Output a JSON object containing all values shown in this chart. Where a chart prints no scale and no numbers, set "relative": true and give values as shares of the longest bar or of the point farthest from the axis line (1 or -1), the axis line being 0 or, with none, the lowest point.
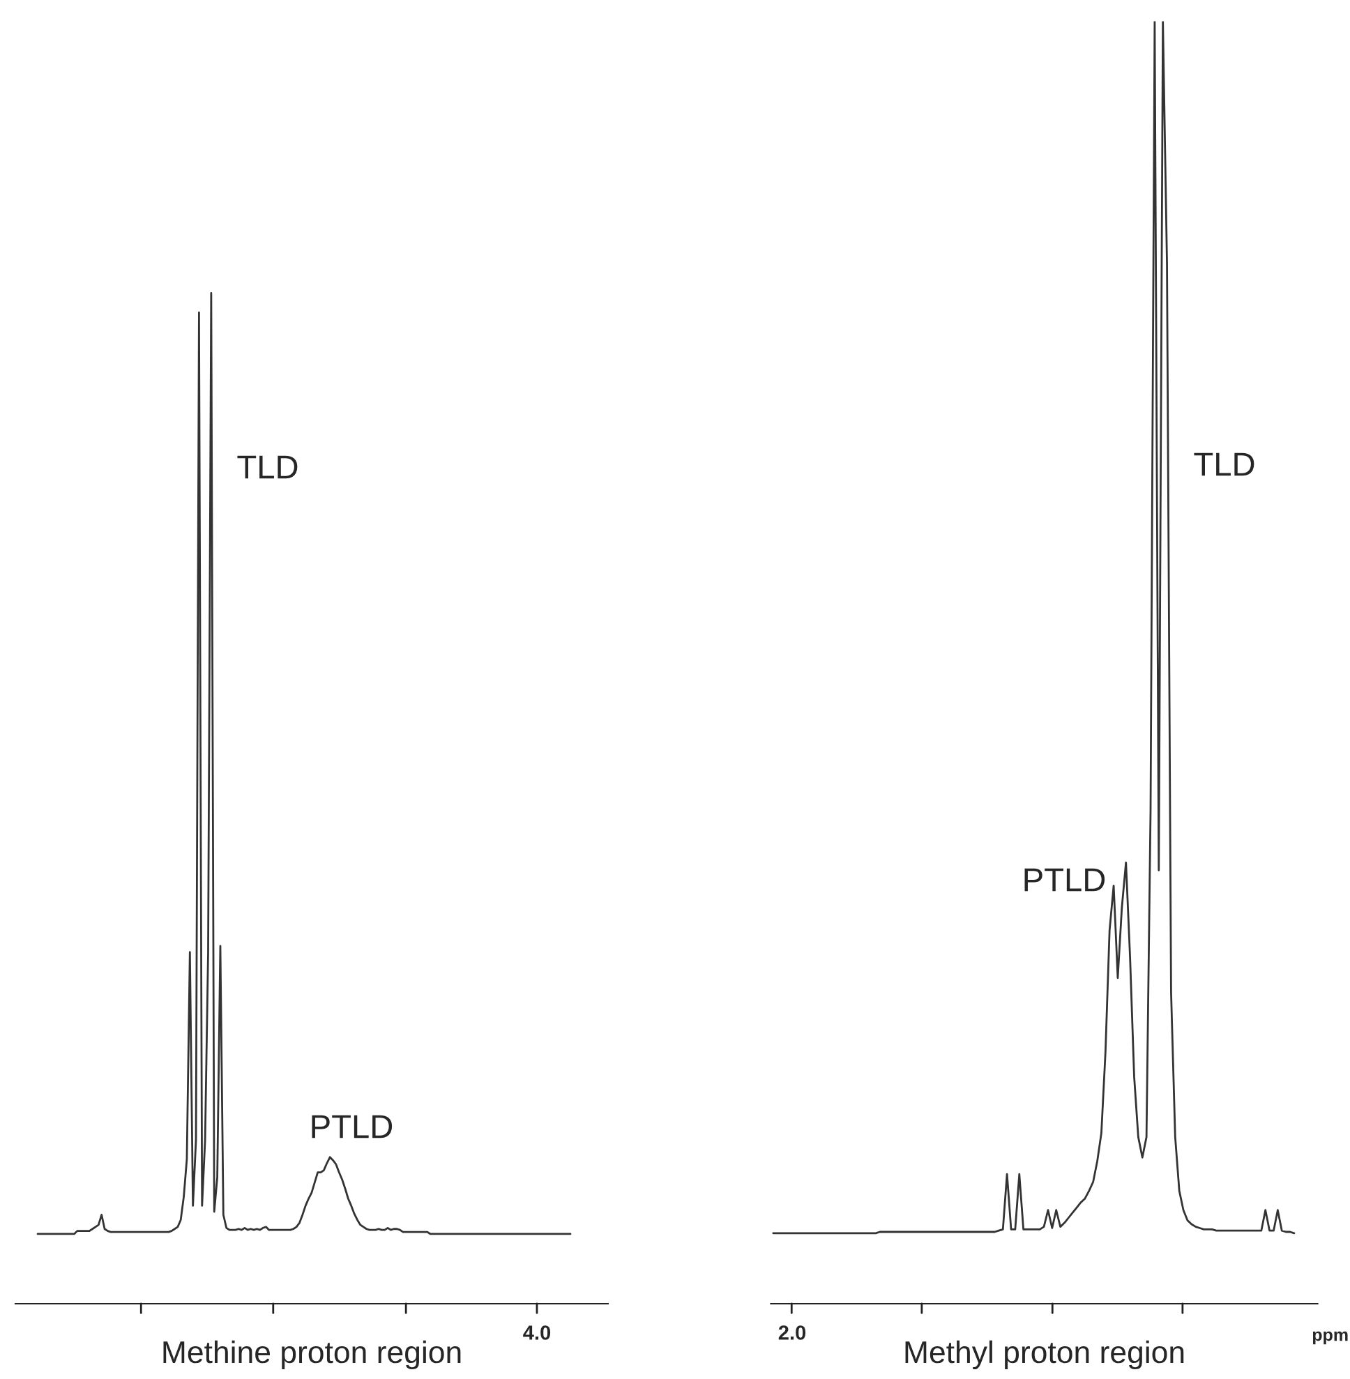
{
  "chart_data": [
    {
      "type": "line",
      "title": "Methine proton region",
      "relative": true,
      "color": "#333333",
      "categories": [
        null,
        null,
        null,
        null,
        null,
        null,
        null,
        null,
        null,
        null,
        null,
        null,
        null,
        null,
        null,
        null,
        null,
        null,
        null,
        null,
        null,
        null,
        null,
        null,
        null,
        null,
        null,
        null,
        null,
        null,
        null,
        null,
        null,
        null,
        null,
        null,
        null,
        null,
        null,
        null,
        null,
        null,
        null,
        null,
        null,
        null,
        null,
        null,
        null,
        null,
        null,
        null,
        null,
        null,
        null,
        null,
        null,
        null,
        null,
        null,
        null,
        null,
        null,
        null,
        null,
        null,
        null,
        null,
        null,
        null,
        null,
        null,
        null,
        null,
        null,
        null,
        null,
        null,
        null,
        null,
        null,
        null,
        null,
        null,
        null,
        null,
        null,
        null,
        null,
        null,
        null,
        null,
        null,
        null,
        null,
        null,
        null,
        null,
        null,
        null,
        null,
        null,
        null,
        null,
        null,
        null,
        null,
        null,
        null,
        null,
        null,
        null,
        null,
        null,
        null,
        null,
        null,
        null,
        null,
        null,
        null,
        null,
        null,
        null,
        null,
        null,
        null,
        null,
        null,
        null,
        null,
        null,
        null,
        null,
        null,
        null,
        null,
        null,
        null,
        null,
        null,
        null,
        null,
        null,
        null,
        null,
        null,
        null,
        null,
        null,
        null,
        null,
        null,
        null,
        null,
        null,
        null,
        null,
        null,
        null,
        null,
        null,
        null,
        null,
        null,
        null,
        null,
        null,
        null,
        null,
        null,
        null,
        null,
        null,
        null,
        null
      ],
      "values": [
        0.069,
        0.069,
        0.069,
        0.069,
        0.069,
        0.069,
        0.069,
        0.069,
        0.069,
        0.069,
        0.069,
        0.069,
        0.069,
        0.072,
        0.072,
        0.072,
        0.072,
        0.072,
        0.074,
        0.076,
        0.078,
        0.088,
        0.074,
        0.072,
        0.071,
        0.071,
        0.071,
        0.071,
        0.071,
        0.071,
        0.071,
        0.071,
        0.071,
        0.071,
        0.071,
        0.071,
        0.071,
        0.071,
        0.071,
        0.071,
        0.071,
        0.071,
        0.071,
        0.071,
        0.072,
        0.074,
        0.076,
        0.083,
        0.106,
        0.143,
        0.348,
        0.097,
        0.162,
        0.981,
        0.097,
        0.162,
        0.348,
        1.0,
        0.091,
        0.125,
        0.354,
        0.088,
        0.075,
        0.073,
        0.073,
        0.073,
        0.074,
        0.073,
        0.075,
        0.073,
        0.074,
        0.073,
        0.074,
        0.073,
        0.075,
        0.076,
        0.073,
        0.073,
        0.073,
        0.073,
        0.073,
        0.073,
        0.073,
        0.073,
        0.074,
        0.076,
        0.08,
        0.088,
        0.097,
        0.104,
        0.11,
        0.12,
        0.13,
        0.13,
        0.132,
        0.139,
        0.145,
        0.142,
        0.138,
        0.13,
        0.123,
        0.114,
        0.104,
        0.097,
        0.089,
        0.083,
        0.078,
        0.076,
        0.074,
        0.073,
        0.073,
        0.073,
        0.074,
        0.073,
        0.073,
        0.075,
        0.073,
        0.074,
        0.074,
        0.073,
        0.071,
        0.071,
        0.071,
        0.071,
        0.071,
        0.071,
        0.071,
        0.071,
        0.071,
        0.069,
        0.069,
        0.069,
        0.069,
        0.069,
        0.069,
        0.069,
        0.069,
        0.069,
        0.069,
        0.069,
        0.069,
        0.069,
        0.069,
        0.069,
        0.069,
        0.069,
        0.069,
        0.069,
        0.069,
        0.069,
        0.069,
        0.069,
        0.069,
        0.069,
        0.069,
        0.069,
        0.069,
        0.069,
        0.069,
        0.069,
        0.069,
        0.069,
        0.069,
        0.069,
        0.069,
        0.069,
        0.069,
        0.069,
        0.069,
        0.069,
        0.069,
        0.069,
        0.069,
        0.069,
        0.069,
        0.069
      ],
      "annotations": [
        "TLD",
        "PTLD",
        "4.0"
      ]
    },
    {
      "type": "line",
      "title": "Methyl proton region",
      "xlabel": "ppm",
      "relative": true,
      "color": "#333333",
      "categories": [
        null,
        null,
        null,
        null,
        null,
        null,
        null,
        null,
        null,
        null,
        null,
        null,
        null,
        null,
        null,
        null,
        null,
        null,
        null,
        null,
        null,
        null,
        null,
        null,
        null,
        null,
        null,
        null,
        null,
        null,
        null,
        null,
        null,
        null,
        null,
        null,
        null,
        null,
        null,
        null,
        null,
        null,
        null,
        null,
        null,
        null,
        null,
        null,
        null,
        null,
        null,
        null,
        null,
        null,
        null,
        null,
        null,
        null,
        null,
        null,
        null,
        null,
        null,
        null,
        null,
        null,
        null,
        null,
        null,
        null,
        null,
        null,
        null,
        null,
        null,
        null,
        null,
        null,
        null,
        null,
        null,
        null,
        null,
        null,
        null,
        null,
        null,
        null,
        null,
        null,
        null,
        null,
        null,
        null,
        null,
        null,
        null,
        null,
        null,
        null,
        null,
        null,
        null,
        null,
        null,
        null,
        null,
        null,
        null,
        null,
        null,
        null,
        null,
        null,
        null,
        null,
        null,
        null,
        null,
        null,
        null,
        null,
        null,
        null,
        null,
        null,
        null,
        null
      ],
      "values": [
        0.055,
        0.055,
        0.055,
        0.055,
        0.055,
        0.055,
        0.055,
        0.055,
        0.055,
        0.055,
        0.055,
        0.055,
        0.055,
        0.055,
        0.055,
        0.055,
        0.055,
        0.055,
        0.055,
        0.055,
        0.055,
        0.055,
        0.055,
        0.055,
        0.055,
        0.055,
        0.056,
        0.056,
        0.056,
        0.056,
        0.056,
        0.056,
        0.056,
        0.056,
        0.056,
        0.056,
        0.056,
        0.056,
        0.056,
        0.056,
        0.056,
        0.056,
        0.056,
        0.056,
        0.056,
        0.056,
        0.056,
        0.056,
        0.056,
        0.056,
        0.056,
        0.056,
        0.056,
        0.056,
        0.056,
        0.057,
        0.058,
        0.101,
        0.058,
        0.058,
        0.101,
        0.058,
        0.058,
        0.058,
        0.058,
        0.058,
        0.06,
        0.073,
        0.059,
        0.073,
        0.06,
        0.063,
        0.067,
        0.071,
        0.075,
        0.079,
        0.082,
        0.088,
        0.095,
        0.111,
        0.133,
        0.196,
        0.291,
        0.326,
        0.254,
        0.309,
        0.344,
        0.27,
        0.177,
        0.13,
        0.114,
        0.13,
        0.385,
        1,
        0.338,
        1,
        0.811,
        0.243,
        0.13,
        0.088,
        0.073,
        0.065,
        0.062,
        0.06,
        0.059,
        0.058,
        0.058,
        0.058,
        0.057,
        0.057,
        0.057,
        0.057,
        0.057,
        0.057,
        0.057,
        0.057,
        0.057,
        0.057,
        0.057,
        0.057,
        0.073,
        0.057,
        0.057,
        0.073,
        0.057,
        0.056,
        0.056,
        0.055
      ],
      "annotations": [
        "PTLD",
        "TLD",
        "2.0"
      ]
    }
  ]
}
